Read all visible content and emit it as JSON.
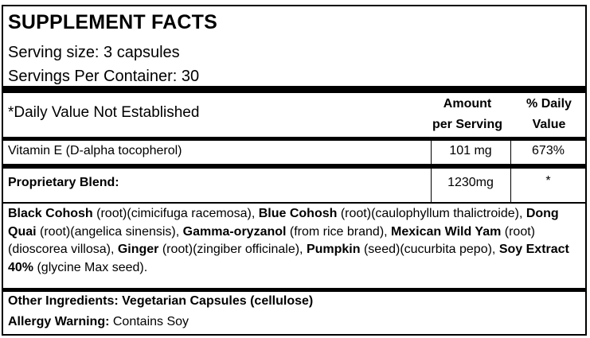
{
  "title": "SUPPLEMENT FACTS",
  "serving_size": "Serving size: 3 capsules",
  "servings_per_container": "Servings Per Container: 30",
  "header": {
    "note": "*Daily Value Not Established",
    "amount_line1": "Amount",
    "amount_line2": "per Serving",
    "dv_line1": "% Daily",
    "dv_line2": "Value"
  },
  "rows": [
    {
      "name": "Vitamin E (D-alpha tocopherol)",
      "amount": "101 mg",
      "dv": "673%"
    },
    {
      "name": "Proprietary Blend:",
      "amount": "1230mg",
      "dv": "*"
    }
  ],
  "blend": [
    {
      "bold": "Black Cohosh",
      "text": " (root)(cimicifuga racemosa), "
    },
    {
      "bold": "Blue Cohosh",
      "text": " (root)(caulophyllum thalictroide), "
    },
    {
      "bold": "Dong Quai",
      "text": " (root)(angelica sinensis), "
    },
    {
      "bold": "Gamma-oryzanol",
      "text": " (from rice brand), "
    },
    {
      "bold": "Mexican Wild Yam",
      "text": " (root)(dioscorea villosa), "
    },
    {
      "bold": "Ginger",
      "text": " (root)(zingiber officinale), "
    },
    {
      "bold": "Pumpkin",
      "text": " (seed)(cucurbita pepo), "
    },
    {
      "bold": "Soy Extract 40%",
      "text": " (glycine Max seed)."
    }
  ],
  "other_ingredients": "Other Ingredients: Vegetarian Capsules (cellulose)",
  "allergy": {
    "label": "Allergy Warning:",
    "text": " Contains Soy"
  }
}
